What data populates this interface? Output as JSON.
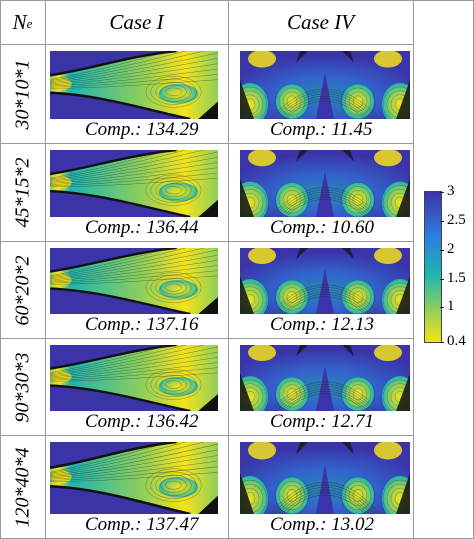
{
  "header": {
    "ne_label": "N",
    "ne_sub": "e",
    "case1": "Case I",
    "case2": "Case IV"
  },
  "rows": [
    {
      "ne": "30*10*1",
      "case1_comp": "Comp.: 134.29",
      "case2_comp": "Comp.: 11.45"
    },
    {
      "ne": "45*15*2",
      "case1_comp": "Comp.: 136.44",
      "case2_comp": "Comp.: 10.60"
    },
    {
      "ne": "60*20*2",
      "case1_comp": "Comp.: 137.16",
      "case2_comp": "Comp.: 12.13"
    },
    {
      "ne": "90*30*3",
      "case1_comp": "Comp.: 136.42",
      "case2_comp": "Comp.: 12.71"
    },
    {
      "ne": "120*40*4",
      "case1_comp": "Comp.: 137.47",
      "case2_comp": "Comp.: 13.02"
    }
  ],
  "colorbar": {
    "ticks": [
      "3",
      "2.5",
      "2",
      "1.5",
      "1",
      "0.4"
    ],
    "tick_values": [
      3,
      2.5,
      2,
      1.5,
      1,
      0.4
    ],
    "range": [
      0.4,
      3
    ],
    "colors": {
      "high": "#3b33a8",
      "mid_high": "#2d7fe0",
      "mid": "#1cb5b0",
      "mid_low": "#8fcf5a",
      "low": "#f5e21c"
    }
  }
}
